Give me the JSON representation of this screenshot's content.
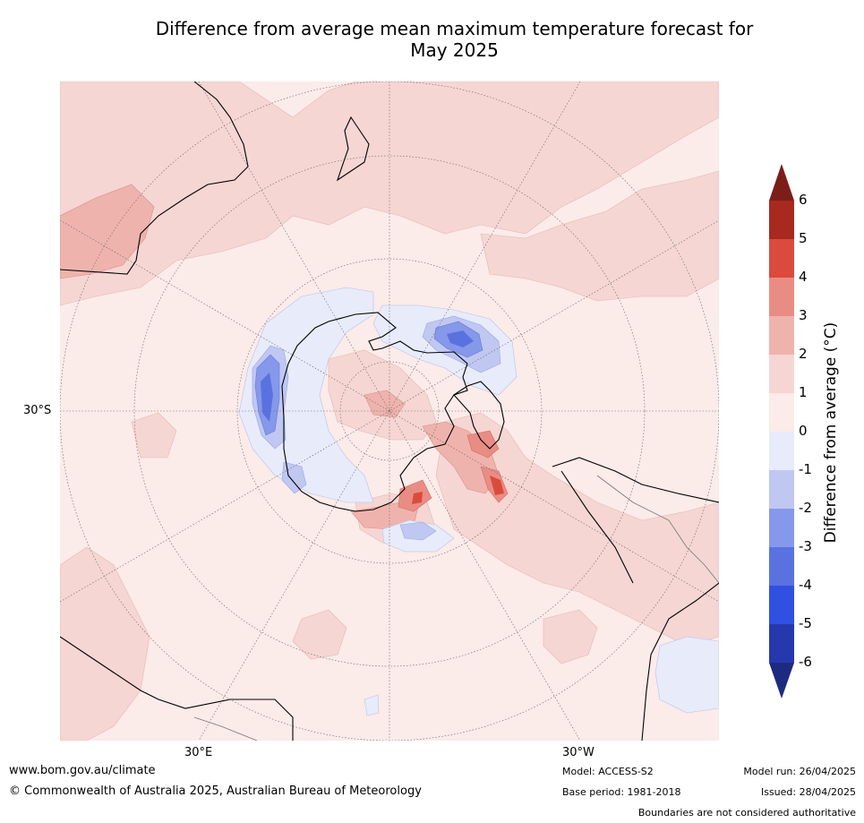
{
  "title_line1": "Difference from average mean maximum temperature forecast for",
  "title_line2": "May 2025",
  "map": {
    "projection": "south-polar-stereographic",
    "lat_labels": [
      "30°S"
    ],
    "lon_labels": [
      "30°E",
      "30°W"
    ]
  },
  "colorbar": {
    "label": "Difference from average (°C)",
    "ticks": [
      "6",
      "5",
      "4",
      "3",
      "2",
      "1",
      "0",
      "-1",
      "-2",
      "-3",
      "-4",
      "-5",
      "-6"
    ],
    "colors_top_to_bottom": [
      "#7b1e19",
      "#a8291f",
      "#da4b3d",
      "#e98d84",
      "#efb3ad",
      "#f5d6d3",
      "#fbebe9",
      "#e8ebfa",
      "#c0c8f1",
      "#8698e9",
      "#5a72e0",
      "#3050e2",
      "#2638ae",
      "#1c2a80"
    ]
  },
  "footer": {
    "website": "www.bom.gov.au/climate",
    "copyright": "© Commonwealth of Australia 2025, Australian Bureau of Meteorology",
    "model": "Model: ACCESS-S2",
    "base_period": "Base period: 1981-2018",
    "model_run": "Model run: 26/04/2025",
    "issued": "Issued: 28/04/2025",
    "disclaimer": "Boundaries are not considered authoritative"
  }
}
